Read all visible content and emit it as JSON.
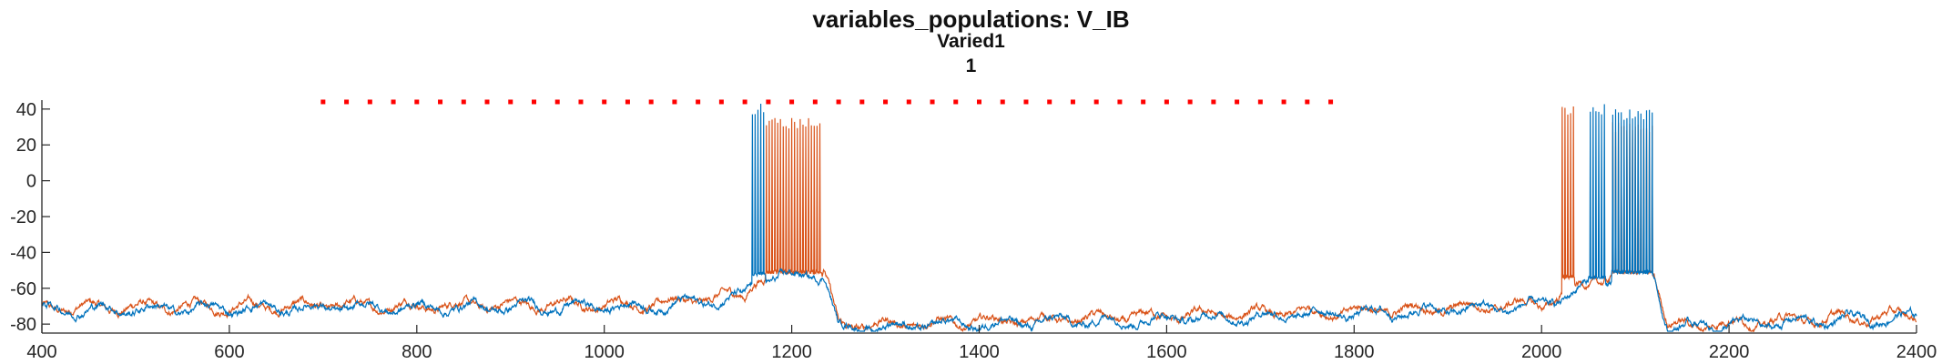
{
  "chart_data": {
    "type": "line",
    "title": "variables_populations: V_IB",
    "subtitle": "Varied1",
    "subtitle2": "1",
    "xlabel": "",
    "ylabel": "",
    "xlim": [
      400,
      2400
    ],
    "ylim": [
      -85,
      45
    ],
    "xticks": [
      400,
      600,
      800,
      1000,
      1200,
      1400,
      1600,
      1800,
      2000,
      2200,
      2400
    ],
    "yticks": [
      -80,
      -60,
      -40,
      -20,
      0,
      20,
      40
    ],
    "grid": false,
    "colors": {
      "series1": "#0072BD",
      "series2": "#D95319",
      "marker": "#FF0000",
      "axis": "#262626"
    },
    "segments": [
      {
        "x": 400,
        "y": -72
      },
      {
        "x": 1050,
        "y": -70
      },
      {
        "x": 1150,
        "y": -65
      },
      {
        "x": 1160,
        "y": -56
      },
      {
        "x": 1235,
        "y": -52
      },
      {
        "x": 1250,
        "y": -82
      },
      {
        "x": 1800,
        "y": -74
      },
      {
        "x": 2000,
        "y": -70
      },
      {
        "x": 2060,
        "y": -56
      },
      {
        "x": 2120,
        "y": -52
      },
      {
        "x": 2135,
        "y": -82
      },
      {
        "x": 2400,
        "y": -76
      }
    ],
    "bursts": [
      {
        "series": 0,
        "x_start": 1158,
        "x_end": 1172,
        "y_low": -53,
        "y_high": 43
      },
      {
        "series": 1,
        "x_start": 1172,
        "x_end": 1232,
        "y_low": -52,
        "y_high": 35
      },
      {
        "series": 1,
        "x_start": 2022,
        "x_end": 2035,
        "y_low": -55,
        "y_high": 42
      },
      {
        "series": 0,
        "x_start": 2050,
        "x_end": 2068,
        "y_low": -55,
        "y_high": 43
      },
      {
        "series": 1,
        "x_start": 2075,
        "x_end": 2118,
        "y_low": -52,
        "y_high": 33
      },
      {
        "series": 0,
        "x_start": 2075,
        "x_end": 2118,
        "y_low": -52,
        "y_high": 40
      }
    ],
    "marker_dots": {
      "x_start": 700,
      "x_end": 1780,
      "step": 25,
      "y": 44
    }
  }
}
